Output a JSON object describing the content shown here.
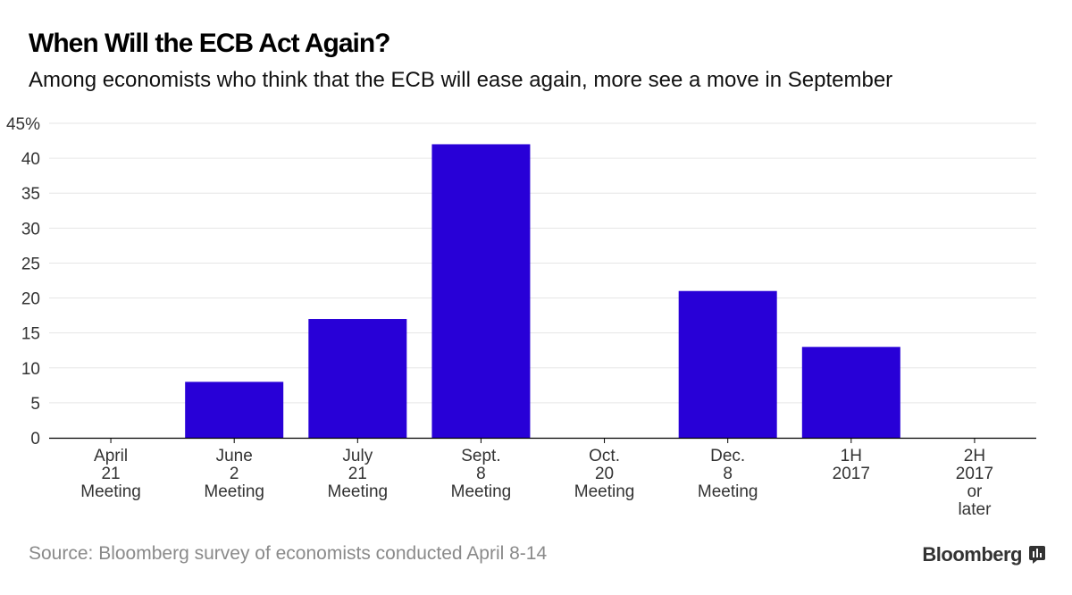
{
  "title": "When Will the ECB Act Again?",
  "subtitle": "Among economists who think that the ECB will ease again, more see a move in September",
  "source": "Source: Bloomberg survey of economists conducted April 8-14",
  "brand": {
    "name": "Bloomberg",
    "icon": "bloomberg-terminal-icon"
  },
  "colors": {
    "bar": "#2800d7",
    "grid": "#e6e6e6",
    "axis": "#000000",
    "tick_text": "#333333"
  },
  "chart_data": {
    "type": "bar",
    "title": "When Will the ECB Act Again?",
    "xlabel": "",
    "ylabel": "",
    "ylim": [
      0,
      45
    ],
    "yticks": [
      0,
      5,
      10,
      15,
      20,
      25,
      30,
      35,
      40,
      45
    ],
    "ytick_labels": [
      "0",
      "5",
      "10",
      "15",
      "20",
      "25",
      "30",
      "35",
      "40",
      "45%"
    ],
    "grid": true,
    "categories": [
      [
        "April",
        "21",
        "Meeting"
      ],
      [
        "June",
        "2",
        "Meeting"
      ],
      [
        "July",
        "21",
        "Meeting"
      ],
      [
        "Sept.",
        "8",
        "Meeting"
      ],
      [
        "Oct.",
        "20",
        "Meeting"
      ],
      [
        "Dec.",
        "8",
        "Meeting"
      ],
      [
        "1H",
        "2017"
      ],
      [
        "2H",
        "2017",
        "or",
        "later"
      ]
    ],
    "values": [
      0,
      8,
      17,
      42,
      0,
      21,
      13,
      0
    ]
  }
}
